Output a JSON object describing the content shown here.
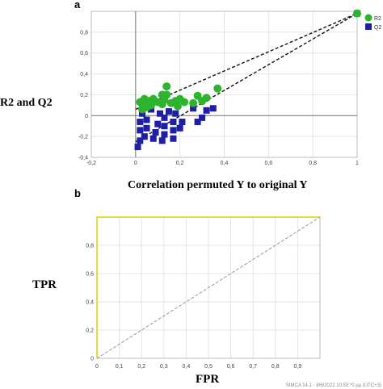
{
  "chart_data": [
    {
      "panel_label": "a",
      "type": "scatter",
      "xlabel": "Correlation permuted Y to original Y",
      "ylabel": "R2 and Q2",
      "xlim": [
        -0.2,
        1.0
      ],
      "ylim": [
        -0.4,
        1.0
      ],
      "xticks": [
        "-0,2",
        "0",
        "0,2",
        "0,4",
        "0,6",
        "0,8",
        "1"
      ],
      "yticks": [
        "0,8",
        "0,6",
        "0,4",
        "0,2",
        "0",
        "-0,2",
        "-0,4"
      ],
      "legend": {
        "position": "top-right",
        "entries": [
          "R2",
          "Q2"
        ]
      },
      "colors": {
        "R2": "#2db42d",
        "Q2": "#1e1ea6"
      },
      "series": [
        {
          "name": "R2",
          "marker": "circle",
          "points": [
            [
              1.0,
              0.98
            ],
            [
              0.37,
              0.26
            ],
            [
              0.32,
              0.17
            ],
            [
              0.3,
              0.14
            ],
            [
              0.28,
              0.19
            ],
            [
              0.26,
              0.12
            ],
            [
              0.22,
              0.13
            ],
            [
              0.2,
              0.16
            ],
            [
              0.19,
              0.09
            ],
            [
              0.18,
              0.14
            ],
            [
              0.16,
              0.12
            ],
            [
              0.14,
              0.2
            ],
            [
              0.14,
              0.28
            ],
            [
              0.13,
              0.15
            ],
            [
              0.12,
              0.2
            ],
            [
              0.12,
              0.11
            ],
            [
              0.1,
              0.13
            ],
            [
              0.08,
              0.16
            ],
            [
              0.07,
              0.1
            ],
            [
              0.06,
              0.14
            ],
            [
              0.05,
              0.08
            ],
            [
              0.04,
              0.16
            ],
            [
              0.03,
              0.11
            ],
            [
              0.03,
              0.06
            ],
            [
              0.02,
              0.13
            ]
          ]
        },
        {
          "name": "Q2",
          "marker": "square",
          "points": [
            [
              1.0,
              0.98
            ],
            [
              0.35,
              0.07
            ],
            [
              0.32,
              0.05
            ],
            [
              0.3,
              -0.02
            ],
            [
              0.28,
              -0.06
            ],
            [
              0.26,
              0.07
            ],
            [
              0.21,
              -0.06
            ],
            [
              0.2,
              -0.12
            ],
            [
              0.18,
              0.02
            ],
            [
              0.17,
              -0.06
            ],
            [
              0.17,
              -0.14
            ],
            [
              0.17,
              -0.22
            ],
            [
              0.15,
              0.04
            ],
            [
              0.13,
              -0.02
            ],
            [
              0.13,
              -0.1
            ],
            [
              0.13,
              -0.18
            ],
            [
              0.12,
              -0.24
            ],
            [
              0.11,
              0.02
            ],
            [
              0.1,
              -0.08
            ],
            [
              0.09,
              -0.16
            ],
            [
              0.08,
              -0.22
            ],
            [
              0.07,
              0.06
            ],
            [
              0.05,
              -0.04
            ],
            [
              0.05,
              -0.12
            ],
            [
              0.04,
              -0.2
            ],
            [
              0.03,
              0.02
            ],
            [
              0.02,
              -0.06
            ],
            [
              0.02,
              -0.14
            ],
            [
              0.02,
              -0.24
            ],
            [
              0.01,
              -0.3
            ]
          ]
        }
      ],
      "regression_lines": [
        {
          "series": "R2",
          "from": [
            0.0,
            0.06
          ],
          "to": [
            1.0,
            0.98
          ]
        },
        {
          "series": "Q2",
          "from": [
            0.0,
            -0.25
          ],
          "to": [
            1.0,
            0.98
          ]
        }
      ]
    },
    {
      "panel_label": "b",
      "type": "line",
      "xlabel": "FPR",
      "ylabel": "TPR",
      "xlim": [
        0,
        1.0
      ],
      "ylim": [
        0,
        1.0
      ],
      "xticks": [
        "0",
        "0,1",
        "0,2",
        "0,3",
        "0,4",
        "0,5",
        "0,6",
        "0,7",
        "0,8",
        "0,9"
      ],
      "yticks": [
        "0,8",
        "0,6",
        "0,4",
        "0,2",
        "0"
      ],
      "series": [
        {
          "line": "roc",
          "color": "#e6dc3c",
          "x": [
            0,
            0,
            1
          ],
          "y": [
            0,
            1,
            1
          ]
        },
        {
          "line": "reference",
          "color": "#9a9a9a",
          "dashed": true,
          "x": [
            0,
            1
          ],
          "y": [
            0,
            1
          ]
        }
      ],
      "footer": "SIMCA 14.1 - 8/6/2022 10:53:*0 µµ (UTC+3)"
    }
  ]
}
